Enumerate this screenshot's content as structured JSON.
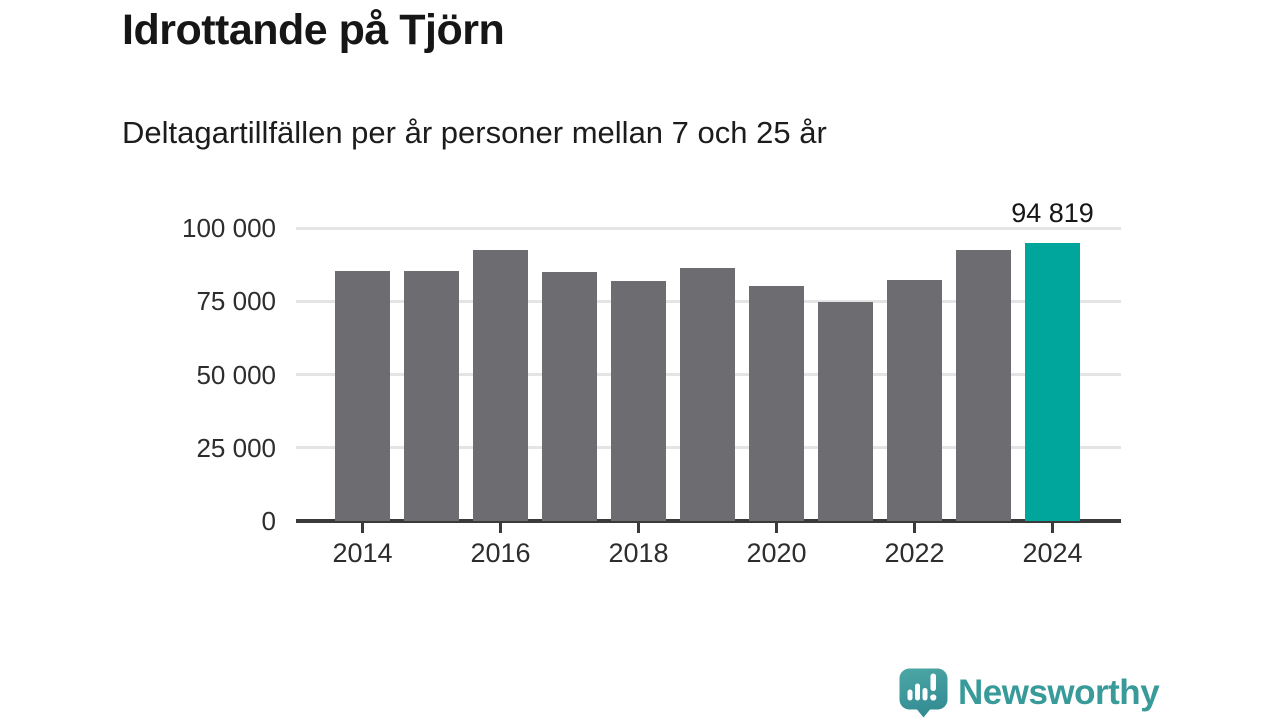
{
  "title": "Idrottande på Tjörn",
  "subtitle": "Deltagartillfällen per år personer mellan 7 och 25 år",
  "chart_data": {
    "type": "bar",
    "categories": [
      "2014",
      "2015",
      "2016",
      "2017",
      "2018",
      "2019",
      "2020",
      "2021",
      "2022",
      "2023",
      "2024"
    ],
    "values": [
      85200,
      85200,
      92500,
      85000,
      82000,
      86500,
      80200,
      74700,
      82300,
      92500,
      94819
    ],
    "highlight_index": 10,
    "highlight_value_label": "94 819",
    "title": "Idrottande på Tjörn",
    "xlabel": "",
    "ylabel": "",
    "ylim": [
      0,
      100000
    ],
    "yticks": [
      0,
      25000,
      50000,
      75000,
      100000
    ],
    "ytick_labels": [
      "0",
      "25 000",
      "50 000",
      "75 000",
      "100 000"
    ],
    "xtick_labels": [
      "2014",
      "2016",
      "2018",
      "2020",
      "2022",
      "2024"
    ],
    "grid": "horizontal-only",
    "legend": "none",
    "colors": {
      "bar": "#6c6c71",
      "highlight": "#00a69c",
      "gridline": "#e4e4e4",
      "axis": "#3a3a3a",
      "tick_text": "#2d2d2d"
    }
  },
  "branding": {
    "name": "Newsworthy",
    "icon": "newsworthy-speech-bubble-barchart-icon",
    "text_color": "#399a9a",
    "icon_color_top": "#4da7a5",
    "icon_color_bottom": "#338c93"
  }
}
